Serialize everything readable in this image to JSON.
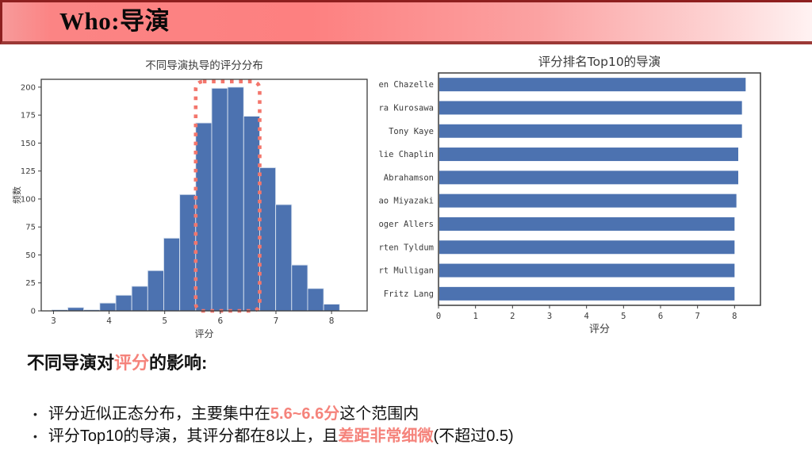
{
  "header": {
    "title": "Who:导演"
  },
  "chart_data": [
    {
      "type": "bar",
      "subtype": "histogram",
      "title": "不同导演执导的评分分布",
      "xlabel": "评分",
      "ylabel": "频数",
      "bin_start": 2.97,
      "bin_width": 0.2875,
      "values": [
        1,
        3,
        1,
        7,
        14,
        22,
        36,
        65,
        104,
        168,
        199,
        200,
        174,
        128,
        95,
        41,
        20,
        6
      ],
      "xticks": [
        3,
        4,
        5,
        6,
        7,
        8
      ],
      "yticks": [
        0,
        25,
        50,
        75,
        100,
        125,
        150,
        175,
        200
      ],
      "xlim": [
        2.78,
        8.64
      ],
      "ylim": [
        0,
        207
      ],
      "grid": false,
      "bar_color": "#4C72B0",
      "bar_edge_color": "#dbe4f0",
      "highlight_box": {
        "x0": 5.5575,
        "x1": 6.7075,
        "y0": 0,
        "y1": 205,
        "color": "#F3766C",
        "meaning": "主要集中区间 5.6~6.6 分"
      }
    },
    {
      "type": "bar",
      "subtype": "horizontal",
      "title": "评分排名Top10的导演",
      "xlabel": "评分",
      "categories": [
        "en Chazelle",
        "ra Kurosawa",
        "Tony Kaye",
        "lie Chaplin",
        "Abrahamson",
        "ao Miyazaki",
        "oger Allers",
        "rten Tyldum",
        "rt Mulligan",
        "Fritz Lang"
      ],
      "values": [
        8.3,
        8.2,
        8.2,
        8.1,
        8.1,
        8.05,
        8.0,
        8.0,
        8.0,
        8.0
      ],
      "xticks": [
        0,
        1,
        2,
        3,
        4,
        5,
        6,
        7,
        8
      ],
      "xlim": [
        0,
        8.7
      ],
      "grid": false,
      "bar_color": "#4C72B0"
    }
  ],
  "analysis": {
    "heading": {
      "pre": "不同导演对",
      "highlight": "评分",
      "post": "的影响:"
    },
    "bullet_char": "•",
    "bullets": [
      {
        "pre": "评分近似正态分布，主要集中在",
        "highlight": "5.6~6.6分",
        "post": "这个范围内"
      },
      {
        "pre": "评分Top10的导演，其评分都在8以上，且",
        "highlight": "差距非常细微",
        "post": "(不超过0.5)"
      }
    ]
  },
  "colors": {
    "highlight_text": "#f5837b",
    "bar_blue": "#4C72B0",
    "dashed_box": "#F3766C",
    "header_border": "#8e1f1f"
  }
}
